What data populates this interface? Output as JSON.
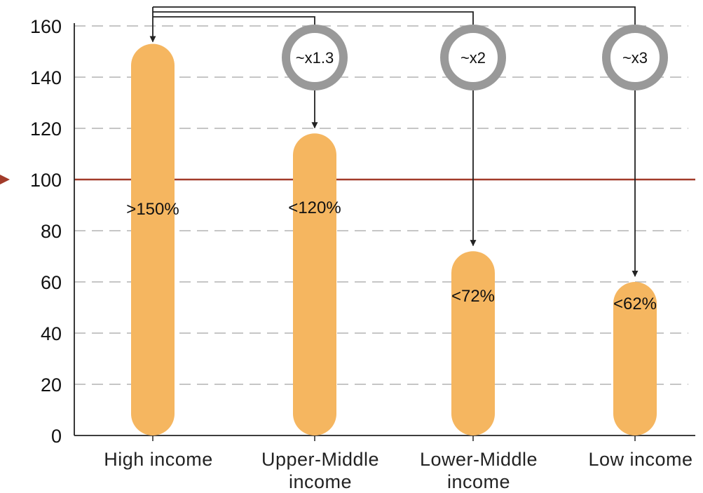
{
  "chart_data": {
    "type": "bar",
    "categories": [
      [
        "High income"
      ],
      [
        "Upper-Middle",
        "income"
      ],
      [
        "Lower-Middle",
        "income"
      ],
      [
        "Low income"
      ]
    ],
    "values": [
      153,
      118,
      72,
      60
    ],
    "data_labels": [
      ">150%",
      "<120%",
      "<72%",
      "<62%"
    ],
    "ylim": [
      0,
      160
    ],
    "yticks": [
      0,
      20,
      40,
      60,
      80,
      100,
      120,
      140,
      160
    ],
    "reference_line": {
      "value": 100,
      "color": "#a23b2a"
    },
    "multipliers": [
      {
        "target": 1,
        "label": "~x1.3"
      },
      {
        "target": 2,
        "label": "~x2"
      },
      {
        "target": 3,
        "label": "~x3"
      }
    ],
    "grid": true,
    "colors": {
      "bar": "#f5b660",
      "grid": "#b4b4b4",
      "axis": "#222222",
      "arrow": "#222222",
      "ring": "#999999"
    }
  }
}
